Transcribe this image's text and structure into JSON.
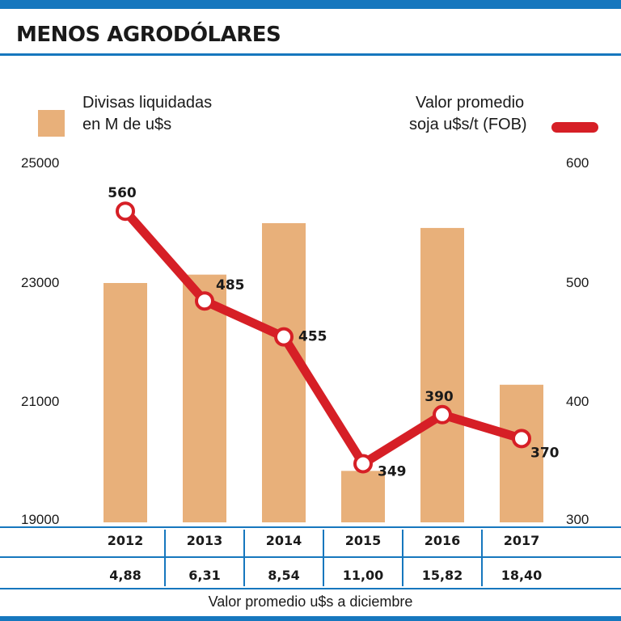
{
  "title": "MENOS AGRODÓLARES",
  "legend": {
    "bars_line1": "Divisas liquidadas",
    "bars_line2": "en M de u$s",
    "line_line1": "Valor promedio",
    "line_line2": "soja u$s/t (FOB)"
  },
  "colors": {
    "accent": "#1677be",
    "bar": "#e8b07a",
    "line": "#d61f26"
  },
  "footer_label": "Valor promedio u$s a diciembre",
  "chart_data": {
    "type": "bar",
    "categories": [
      "2012",
      "2013",
      "2014",
      "2015",
      "2016",
      "2017"
    ],
    "series": [
      {
        "name": "Divisas liquidadas en M de u$s",
        "axis": "left",
        "type": "bar",
        "values": [
          23000,
          23140,
          24000,
          19860,
          23920,
          21300
        ]
      },
      {
        "name": "Valor promedio soja u$s/t (FOB)",
        "axis": "right",
        "type": "line",
        "values": [
          560,
          485,
          455,
          349,
          390,
          370
        ]
      }
    ],
    "line_labels": [
      "560",
      "485",
      "455",
      "349",
      "390",
      "370"
    ],
    "y_left": {
      "ticks": [
        "25000",
        "23000",
        "21000",
        "19000"
      ],
      "range": [
        19000,
        25000
      ]
    },
    "y_right": {
      "ticks": [
        "600",
        "500",
        "400",
        "300"
      ],
      "range": [
        300,
        600
      ]
    },
    "table_row": [
      "4,88",
      "6,31",
      "8,54",
      "11,00",
      "15,82",
      "18,40"
    ]
  }
}
